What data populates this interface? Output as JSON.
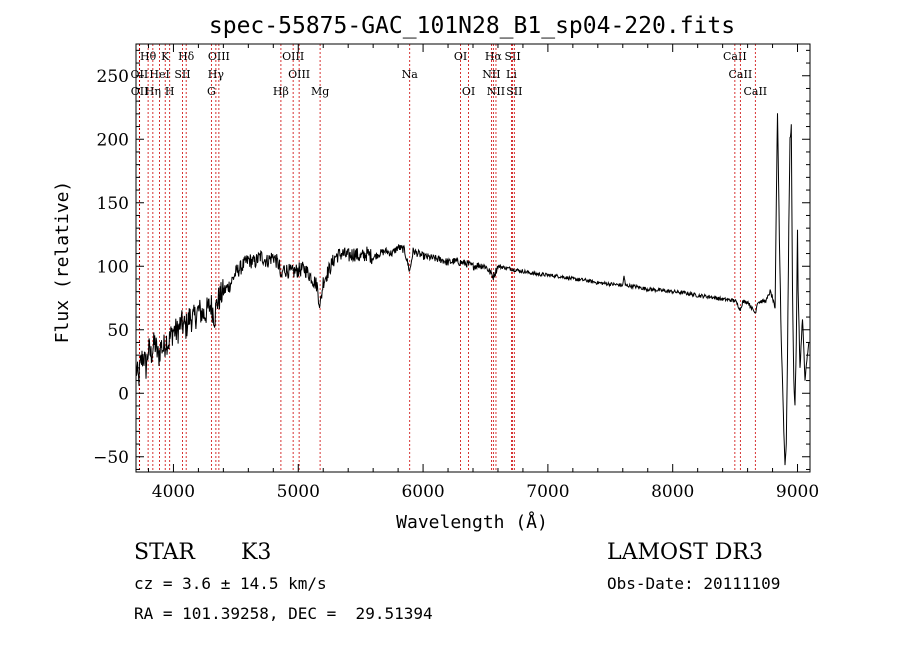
{
  "chart_data": {
    "type": "line",
    "title": "spec-55875-GAC_101N28_B1_sp04-220.fits",
    "xlabel": "Wavelength (Å)",
    "ylabel": "Flux (relative)",
    "xlim": [
      3700,
      9100
    ],
    "ylim": [
      -62,
      275
    ],
    "xticks": [
      4000,
      5000,
      6000,
      7000,
      8000,
      9000
    ],
    "yticks": [
      -50,
      0,
      50,
      100,
      150,
      200,
      250
    ],
    "yticklabels_shown": [
      "−50",
      "0",
      "50",
      "100",
      "150",
      "200",
      "250"
    ],
    "series": [
      {
        "name": "spectrum",
        "color": "#000000",
        "anchors": [
          [
            3700,
            20
          ],
          [
            3720,
            10
          ],
          [
            3740,
            25
          ],
          [
            3760,
            30
          ],
          [
            3780,
            20
          ],
          [
            3800,
            35
          ],
          [
            3820,
            30
          ],
          [
            3850,
            40
          ],
          [
            3880,
            28
          ],
          [
            3900,
            38
          ],
          [
            3920,
            35
          ],
          [
            3940,
            42
          ],
          [
            3960,
            40
          ],
          [
            3980,
            45
          ],
          [
            4000,
            50
          ],
          [
            4030,
            48
          ],
          [
            4060,
            55
          ],
          [
            4100,
            52
          ],
          [
            4130,
            60
          ],
          [
            4160,
            58
          ],
          [
            4200,
            65
          ],
          [
            4250,
            62
          ],
          [
            4300,
            70
          ],
          [
            4330,
            60
          ],
          [
            4350,
            72
          ],
          [
            4400,
            80
          ],
          [
            4450,
            85
          ],
          [
            4500,
            95
          ],
          [
            4550,
            100
          ],
          [
            4600,
            105
          ],
          [
            4650,
            103
          ],
          [
            4700,
            108
          ],
          [
            4750,
            104
          ],
          [
            4800,
            108
          ],
          [
            4850,
            100
          ],
          [
            4861,
            88
          ],
          [
            4880,
            98
          ],
          [
            4950,
            95
          ],
          [
            5000,
            97
          ],
          [
            5050,
            98
          ],
          [
            5100,
            92
          ],
          [
            5150,
            85
          ],
          [
            5175,
            68
          ],
          [
            5200,
            88
          ],
          [
            5250,
            98
          ],
          [
            5300,
            108
          ],
          [
            5350,
            110
          ],
          [
            5400,
            108
          ],
          [
            5450,
            110
          ],
          [
            5500,
            107
          ],
          [
            5550,
            110
          ],
          [
            5600,
            107
          ],
          [
            5650,
            110
          ],
          [
            5700,
            112
          ],
          [
            5750,
            110
          ],
          [
            5800,
            115
          ],
          [
            5850,
            113
          ],
          [
            5893,
            96
          ],
          [
            5920,
            112
          ],
          [
            6000,
            108
          ],
          [
            6050,
            107
          ],
          [
            6100,
            106
          ],
          [
            6150,
            105
          ],
          [
            6200,
            103
          ],
          [
            6250,
            104
          ],
          [
            6300,
            103
          ],
          [
            6350,
            102
          ],
          [
            6400,
            100
          ],
          [
            6450,
            101
          ],
          [
            6500,
            100
          ],
          [
            6563,
            92
          ],
          [
            6600,
            100
          ],
          [
            6650,
            99
          ],
          [
            6700,
            98
          ],
          [
            6750,
            97
          ],
          [
            6800,
            96
          ],
          [
            6900,
            94
          ],
          [
            7000,
            93
          ],
          [
            7100,
            92
          ],
          [
            7200,
            90
          ],
          [
            7300,
            89
          ],
          [
            7400,
            87
          ],
          [
            7500,
            86
          ],
          [
            7600,
            85
          ],
          [
            7610,
            93
          ],
          [
            7620,
            85
          ],
          [
            7700,
            84
          ],
          [
            7800,
            82
          ],
          [
            7900,
            81
          ],
          [
            8000,
            80
          ],
          [
            8100,
            79
          ],
          [
            8200,
            77
          ],
          [
            8300,
            76
          ],
          [
            8400,
            74
          ],
          [
            8500,
            73
          ],
          [
            8542,
            66
          ],
          [
            8560,
            72
          ],
          [
            8600,
            72
          ],
          [
            8662,
            63
          ],
          [
            8680,
            72
          ],
          [
            8700,
            72
          ],
          [
            8750,
            73
          ],
          [
            8780,
            80
          ],
          [
            8800,
            75
          ],
          [
            8820,
            65
          ],
          [
            8830,
            150
          ],
          [
            8840,
            222
          ],
          [
            8855,
            120
          ],
          [
            8870,
            40
          ],
          [
            8880,
            10
          ],
          [
            8890,
            -30
          ],
          [
            8900,
            -55
          ],
          [
            8910,
            -40
          ],
          [
            8920,
            30
          ],
          [
            8930,
            130
          ],
          [
            8940,
            200
          ],
          [
            8950,
            210
          ],
          [
            8960,
            80
          ],
          [
            8970,
            10
          ],
          [
            8980,
            -10
          ],
          [
            8990,
            40
          ],
          [
            9000,
            130
          ],
          [
            9005,
            80
          ],
          [
            9020,
            20
          ],
          [
            9040,
            60
          ],
          [
            9060,
            10
          ],
          [
            9090,
            40
          ]
        ]
      }
    ],
    "line_markers": {
      "row1": [
        {
          "label": "Hθ",
          "wl": 3797
        },
        {
          "label": "K",
          "wl": 3934
        },
        {
          "label": "Hδ",
          "wl": 4102
        },
        {
          "label": "OIII",
          "wl": 4364
        },
        {
          "label": "OIII",
          "wl": 4959
        },
        {
          "label": "OI",
          "wl": 6300
        },
        {
          "label": "Hα",
          "wl": 6563
        },
        {
          "label": "SII",
          "wl": 6717
        },
        {
          "label": "CaII",
          "wl": 8498
        }
      ],
      "row2": [
        {
          "label": "OII",
          "wl": 3727
        },
        {
          "label": "HeI",
          "wl": 3889
        },
        {
          "label": "SII",
          "wl": 4072
        },
        {
          "label": "Hγ",
          "wl": 4340
        },
        {
          "label": "OIII",
          "wl": 5007
        },
        {
          "label": "Na",
          "wl": 5893
        },
        {
          "label": "NII",
          "wl": 6548
        },
        {
          "label": "Li",
          "wl": 6708
        },
        {
          "label": "CaII",
          "wl": 8542
        }
      ],
      "row3": [
        {
          "label": "OII",
          "wl": 3729
        },
        {
          "label": "Hη",
          "wl": 3835
        },
        {
          "label": "H",
          "wl": 3970
        },
        {
          "label": "G",
          "wl": 4304
        },
        {
          "label": "Hβ",
          "wl": 4861
        },
        {
          "label": "Mg",
          "wl": 5175
        },
        {
          "label": "OI",
          "wl": 6364
        },
        {
          "label": "NII",
          "wl": 6584
        },
        {
          "label": "SII",
          "wl": 6731
        },
        {
          "label": "CaII",
          "wl": 8662
        }
      ]
    },
    "marker_color": "#cc0000"
  },
  "info": {
    "obj_class": "STAR",
    "subclass": "K3",
    "survey": "LAMOST DR3",
    "cz_line": "cz = 3.6 ± 14.5 km/s",
    "obs_date_line": "Obs-Date: 20111109",
    "radec_line": "RA = 101.39258, DEC =  29.51394"
  }
}
